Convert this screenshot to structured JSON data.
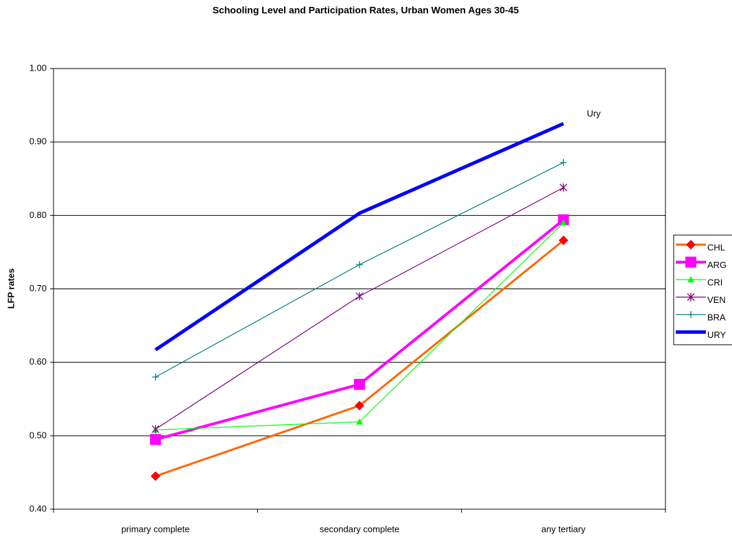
{
  "chart_data": {
    "type": "line",
    "title": "Schooling Level and Participation Rates, Urban Women Ages 30-45",
    "y_label": "LFP rates",
    "categories": [
      "primary complete",
      "secondary complete",
      "any tertiary"
    ],
    "series": [
      {
        "name": "CHL",
        "color": "#ff6600",
        "marker_color": "#ff0000",
        "marker": "diamond",
        "width": 3,
        "values": [
          0.445,
          0.541,
          0.766
        ]
      },
      {
        "name": "ARG",
        "color": "#ff00ff",
        "marker_color": "#ff00ff",
        "marker": "square",
        "width": 4,
        "values": [
          0.495,
          0.57,
          0.794
        ]
      },
      {
        "name": "CRI",
        "color": "#00ff00",
        "marker_color": "#00ff00",
        "marker": "triangle",
        "width": 1.2,
        "values": [
          0.508,
          0.519,
          0.79
        ]
      },
      {
        "name": "VEN",
        "color": "#800080",
        "marker_color": "#800080",
        "marker": "star",
        "width": 1.2,
        "values": [
          0.509,
          0.69,
          0.838
        ]
      },
      {
        "name": "BRA",
        "color": "#008080",
        "marker_color": "#008080",
        "marker": "plus",
        "width": 1.2,
        "values": [
          0.58,
          0.733,
          0.872
        ]
      },
      {
        "name": "URY",
        "color": "#0000ff",
        "marker_color": "#0000ff",
        "marker": "none",
        "width": 5,
        "values": [
          0.617,
          0.803,
          0.925
        ]
      }
    ],
    "annotations": [
      {
        "text": "Ury"
      }
    ],
    "ylim": [
      0.4,
      1.0
    ],
    "yticks": [
      {
        "value": 0.4,
        "label": "0.40"
      },
      {
        "value": 0.5,
        "label": "0.50"
      },
      {
        "value": 0.6,
        "label": "0.60"
      },
      {
        "value": 0.7,
        "label": "0.70"
      },
      {
        "value": 0.8,
        "label": "0.80"
      },
      {
        "value": 0.9,
        "label": "0.90"
      },
      {
        "value": 1.0,
        "label": "1.00"
      }
    ],
    "grid": true,
    "legend": "right"
  }
}
